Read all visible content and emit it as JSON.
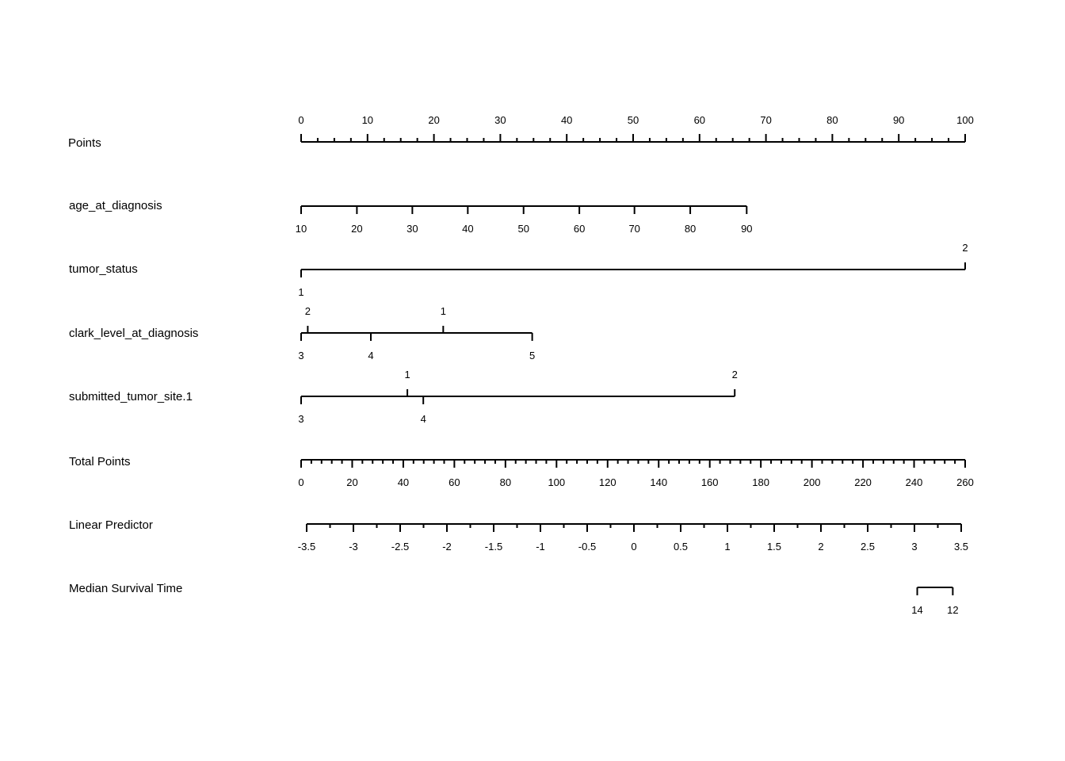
{
  "chart_data": {
    "type": "nomogram",
    "axes": [
      {
        "name": "Points",
        "kind": "points",
        "range": [
          0,
          100
        ],
        "major_step": 10,
        "minor_step": 2.5,
        "tick_labels": [
          "0",
          "10",
          "20",
          "30",
          "40",
          "50",
          "60",
          "70",
          "80",
          "90",
          "100"
        ]
      },
      {
        "name": "age_at_diagnosis",
        "kind": "variable",
        "levels": [
          {
            "label": "10",
            "points": 0,
            "side": "below"
          },
          {
            "label": "20",
            "points": 8.4,
            "side": "below"
          },
          {
            "label": "30",
            "points": 16.75,
            "side": "below"
          },
          {
            "label": "40",
            "points": 25.1,
            "side": "below"
          },
          {
            "label": "50",
            "points": 33.5,
            "side": "below"
          },
          {
            "label": "60",
            "points": 41.9,
            "side": "below"
          },
          {
            "label": "70",
            "points": 50.2,
            "side": "below"
          },
          {
            "label": "80",
            "points": 58.6,
            "side": "below"
          },
          {
            "label": "90",
            "points": 67.1,
            "side": "below"
          }
        ]
      },
      {
        "name": "tumor_status",
        "kind": "variable",
        "levels": [
          {
            "label": "1",
            "points": 0,
            "side": "below"
          },
          {
            "label": "2",
            "points": 100,
            "side": "above"
          }
        ]
      },
      {
        "name": "clark_level_at_diagnosis",
        "kind": "variable",
        "levels": [
          {
            "label": "3",
            "points": 0,
            "side": "below"
          },
          {
            "label": "2",
            "points": 1,
            "side": "above"
          },
          {
            "label": "4",
            "points": 10.5,
            "side": "below"
          },
          {
            "label": "1",
            "points": 21.4,
            "side": "above"
          },
          {
            "label": "5",
            "points": 34.8,
            "side": "below"
          }
        ]
      },
      {
        "name": "submitted_tumor_site.1",
        "kind": "variable",
        "levels": [
          {
            "label": "3",
            "points": 0,
            "side": "below"
          },
          {
            "label": "1",
            "points": 16,
            "side": "above"
          },
          {
            "label": "4",
            "points": 18.4,
            "side": "below"
          },
          {
            "label": "2",
            "points": 65.3,
            "side": "above"
          }
        ]
      },
      {
        "name": "Total Points",
        "kind": "total",
        "range": [
          0,
          260
        ],
        "major_step": 20,
        "minor_step": 4,
        "tick_labels": [
          "0",
          "20",
          "40",
          "60",
          "80",
          "100",
          "120",
          "140",
          "160",
          "180",
          "200",
          "220",
          "240",
          "260"
        ]
      },
      {
        "name": "Linear Predictor",
        "kind": "lp",
        "range": [
          -3.5,
          3.5
        ],
        "major_step": 0.5,
        "minor_step": 0.25,
        "tick_labels": [
          "-3.5",
          "-3",
          "-2.5",
          "-2",
          "-1.5",
          "-1",
          "-0.5",
          "0",
          "0.5",
          "1",
          "1.5",
          "2",
          "2.5",
          "3",
          "3.5"
        ]
      },
      {
        "name": "Median Survival Time",
        "kind": "survival",
        "levels": [
          {
            "label": "14",
            "lp": 3.03
          },
          {
            "label": "12",
            "lp": 3.41
          }
        ]
      }
    ]
  }
}
